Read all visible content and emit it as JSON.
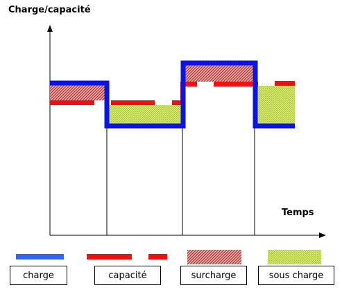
{
  "y_axis_label": "Charge/capacité",
  "x_axis_label": "Temps",
  "legend": {
    "charge": "charge",
    "capacite": "capacité",
    "surcharge": "surcharge",
    "sous_charge": "sous charge"
  },
  "colors": {
    "charge": "#0a14e6",
    "charge_legend": "#3366ee",
    "capacite": "#ee1111",
    "surcharge_hatch": "#b52b2b",
    "surcharge_bg": "#e9b0b0",
    "sous_charge_hatch": "#9cbf1e",
    "sous_charge_bg": "#e6f08a"
  }
}
